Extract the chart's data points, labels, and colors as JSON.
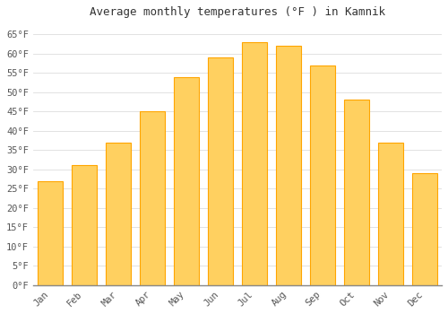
{
  "title": "Average monthly temperatures (°F ) in Kamnik",
  "months": [
    "Jan",
    "Feb",
    "Mar",
    "Apr",
    "May",
    "Jun",
    "Jul",
    "Aug",
    "Sep",
    "Oct",
    "Nov",
    "Dec"
  ],
  "values": [
    27,
    31,
    37,
    45,
    54,
    59,
    63,
    62,
    57,
    48,
    37,
    29
  ],
  "bar_color_main": "#FFA500",
  "bar_color_light": "#FFD060",
  "background_color": "#FFFFFF",
  "grid_color": "#DDDDDD",
  "ylim": [
    0,
    68
  ],
  "yticks": [
    0,
    5,
    10,
    15,
    20,
    25,
    30,
    35,
    40,
    45,
    50,
    55,
    60,
    65
  ],
  "title_fontsize": 9,
  "tick_fontsize": 7.5,
  "font_family": "monospace"
}
